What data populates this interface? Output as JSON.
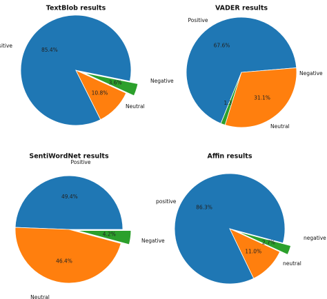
{
  "chart_data": [
    {
      "type": "pie",
      "title": "TextBlob results",
      "slices": [
        {
          "label": "Positive",
          "value": 85.4,
          "pct_label": "85.4%",
          "color": "#1f77b4",
          "explode": false
        },
        {
          "label": "Neutral",
          "value": 10.8,
          "pct_label": "10.8%",
          "color": "#ff7f0e",
          "explode": false
        },
        {
          "label": "Negative",
          "value": 3.6,
          "pct_label": "3.6%",
          "color": "#2ca02c",
          "explode": true
        }
      ]
    },
    {
      "type": "pie",
      "title": "VADER results",
      "slices": [
        {
          "label": "Positive",
          "value": 67.6,
          "pct_label": "67.6%",
          "color": "#1f77b4",
          "explode": false
        },
        {
          "label": "Negative",
          "value": 1.3,
          "pct_label": "1.3%",
          "color": "#2ca02c",
          "explode": false
        },
        {
          "label": "Neutral",
          "value": 31.1,
          "pct_label": "31.1%",
          "color": "#ff7f0e",
          "explode": false
        }
      ]
    },
    {
      "type": "pie",
      "title": "SentiWordNet results",
      "slices": [
        {
          "label": "Positive",
          "value": 49.4,
          "pct_label": "49.4%",
          "color": "#1f77b4",
          "explode": false
        },
        {
          "label": "Neutral",
          "value": 46.4,
          "pct_label": "46.4%",
          "color": "#ff7f0e",
          "explode": false
        },
        {
          "label": "Negative",
          "value": 4.2,
          "pct_label": "4.2%",
          "color": "#2ca02c",
          "explode": true
        }
      ]
    },
    {
      "type": "pie",
      "title": "Affin results",
      "slices": [
        {
          "label": "positive",
          "value": 86.3,
          "pct_label": "86.3%",
          "color": "#1f77b4",
          "explode": false
        },
        {
          "label": "neutral",
          "value": 11.0,
          "pct_label": "11.0%",
          "color": "#ff7f0e",
          "explode": false
        },
        {
          "label": "negative",
          "value": 2.7,
          "pct_label": "2.7%",
          "color": "#2ca02c",
          "explode": true
        }
      ]
    }
  ]
}
